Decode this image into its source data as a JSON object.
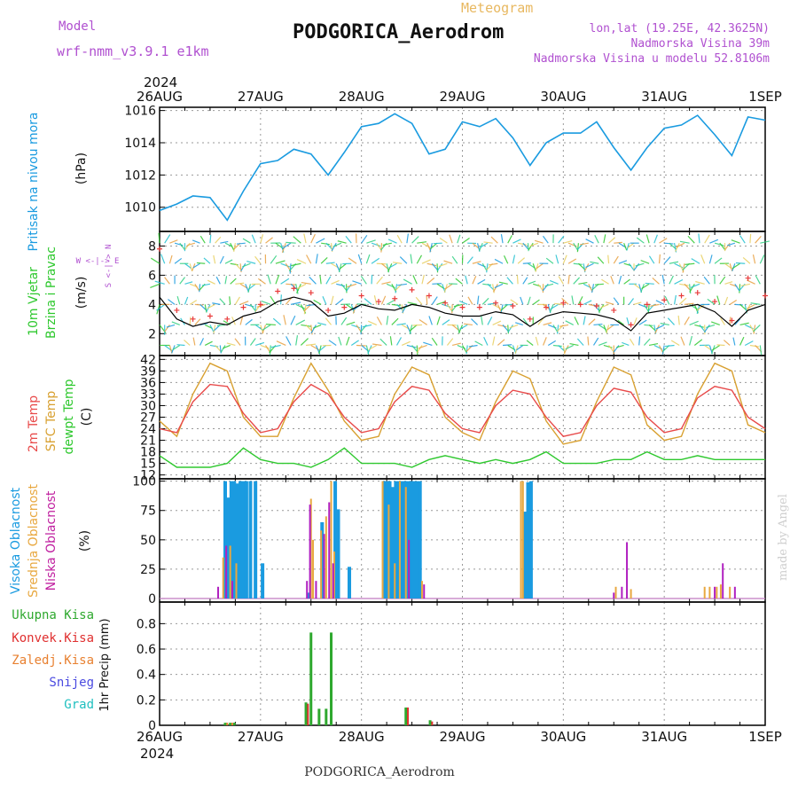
{
  "header": {
    "model_label": "Model",
    "model_name": "wrf-nmm_v3.9.1 e1km",
    "product": "Meteogram",
    "station": "PODGORICA_Aerodrom",
    "lonlat": "lon,lat (19.25E, 42.3625N)",
    "elevation": "Nadmorska Visina 39m",
    "model_elevation": "Nadmorska Visina u modelu 52.8106m"
  },
  "footer": {
    "station": "PODGORICA_Aerodrom",
    "credit": "made by Angel"
  },
  "time_axis": {
    "year": "2024",
    "ticks": [
      "26AUG",
      "27AUG",
      "28AUG",
      "29AUG",
      "30AUG",
      "31AUG",
      "1SEP"
    ]
  },
  "colors": {
    "pressure": "#1a9be0",
    "wind_mean": "#000000",
    "wind_gust": "#e83a3a",
    "temp2m": "#e84a4a",
    "sfc_temp": "#d8a030",
    "dewpt": "#2ec82e",
    "high_cloud": "#1a9be0",
    "mid_cloud": "#e8a840",
    "low_cloud": "#b020c0",
    "precip_total": "#2ea82e",
    "precip_conv": "#e03030",
    "precip_frozen": "#e88030",
    "snow": "#4a4ae0",
    "grad": "#20c0c0",
    "grid": "#999999",
    "title_purple": "#b050d0"
  },
  "chart_data": [
    {
      "type": "line",
      "title": "Pritisak na nivou mora",
      "ylabel": "(hPa)",
      "ylim": [
        1008.5,
        1016.2
      ],
      "yticks": [
        1010,
        1012,
        1014,
        1016
      ],
      "x": [
        0,
        0.17,
        0.33,
        0.5,
        0.67,
        0.83,
        1.0,
        1.17,
        1.33,
        1.5,
        1.67,
        1.83,
        2.0,
        2.17,
        2.33,
        2.5,
        2.67,
        2.83,
        3.0,
        3.17,
        3.33,
        3.5,
        3.67,
        3.83,
        4.0,
        4.17,
        4.33,
        4.5,
        4.67,
        4.83,
        5.0,
        5.17,
        5.33,
        5.5,
        5.67,
        5.83,
        6.0
      ],
      "series": [
        {
          "values": [
            1009.8,
            1010.2,
            1010.7,
            1010.6,
            1009.2,
            1011.0,
            1012.7,
            1012.9,
            1013.6,
            1013.3,
            1012.0,
            1013.4,
            1015.0,
            1015.2,
            1015.8,
            1015.2,
            1013.3,
            1013.6,
            1015.3,
            1015.0,
            1015.5,
            1014.3,
            1012.6,
            1014.0,
            1014.6,
            1014.6,
            1015.3,
            1013.7,
            1012.3,
            1013.7,
            1014.9,
            1015.1,
            1015.7,
            1014.5,
            1013.2,
            1015.6,
            1015.4
          ]
        }
      ]
    },
    {
      "type": "line",
      "title": "10m Vjetar Brzina i Pravac",
      "ylabel": "(m/s)",
      "ylim": [
        0.5,
        9.0
      ],
      "yticks": [
        2,
        4,
        6,
        8
      ],
      "x": [
        0,
        0.17,
        0.33,
        0.5,
        0.67,
        0.83,
        1.0,
        1.17,
        1.33,
        1.5,
        1.67,
        1.83,
        2.0,
        2.17,
        2.33,
        2.5,
        2.67,
        2.83,
        3.0,
        3.17,
        3.33,
        3.5,
        3.67,
        3.83,
        4.0,
        4.17,
        4.33,
        4.5,
        4.67,
        4.83,
        5.0,
        5.17,
        5.33,
        5.5,
        5.67,
        5.83,
        6.0
      ],
      "series": [
        {
          "values": [
            4.5,
            3.0,
            2.5,
            2.8,
            2.6,
            3.2,
            3.5,
            4.2,
            4.5,
            4.2,
            3.2,
            3.4,
            4.0,
            3.7,
            3.6,
            4.0,
            3.8,
            3.4,
            3.2,
            3.2,
            3.5,
            3.3,
            2.5,
            3.2,
            3.5,
            3.4,
            3.3,
            3.0,
            2.2,
            3.4,
            3.6,
            3.8,
            4.0,
            3.5,
            2.5,
            3.6,
            4.0
          ]
        },
        {
          "values": [
            7.8,
            3.6,
            3.0,
            3.2,
            3.0,
            3.8,
            4.0,
            4.9,
            5.1,
            4.8,
            3.6,
            3.8,
            4.6,
            4.2,
            4.4,
            5.0,
            4.6,
            4.1,
            3.8,
            3.8,
            4.1,
            3.9,
            3.0,
            3.8,
            4.1,
            4.0,
            3.9,
            3.6,
            2.6,
            4.0,
            4.3,
            4.6,
            4.8,
            4.2,
            2.9,
            5.8,
            4.6
          ]
        }
      ],
      "direction_legend": [
        "N",
        "S",
        "E",
        "W"
      ]
    },
    {
      "type": "line",
      "title": "2m Temp / SFC Temp / dewpt Temp",
      "ylabel": "(C)",
      "ylim": [
        11,
        43
      ],
      "yticks": [
        12,
        15,
        18,
        21,
        24,
        27,
        30,
        33,
        36,
        39,
        42
      ],
      "x": [
        0,
        0.17,
        0.33,
        0.5,
        0.67,
        0.83,
        1.0,
        1.17,
        1.33,
        1.5,
        1.67,
        1.83,
        2.0,
        2.17,
        2.33,
        2.5,
        2.67,
        2.83,
        3.0,
        3.17,
        3.33,
        3.5,
        3.67,
        3.83,
        4.0,
        4.17,
        4.33,
        4.5,
        4.67,
        4.83,
        5.0,
        5.17,
        5.33,
        5.5,
        5.67,
        5.83,
        6.0
      ],
      "series": [
        {
          "name": "2m Temp",
          "values": [
            24,
            23,
            31,
            35.5,
            35,
            28,
            23,
            24,
            31,
            35.5,
            33,
            27,
            23,
            24,
            31,
            35,
            34,
            28,
            24,
            23,
            30,
            34,
            33,
            27,
            22,
            23,
            30,
            34.5,
            33.5,
            27,
            23,
            24,
            32,
            35,
            34,
            27,
            24
          ]
        },
        {
          "name": "SFC Temp",
          "values": [
            26,
            22,
            33,
            41,
            39,
            27,
            22,
            22,
            32,
            41,
            34,
            26,
            21,
            22,
            33,
            40,
            38,
            27,
            23,
            21,
            31,
            39,
            37,
            26,
            20,
            21,
            31,
            40,
            38,
            25,
            21,
            22,
            33,
            41,
            39,
            25,
            23
          ]
        },
        {
          "name": "dewpt Temp",
          "values": [
            17,
            14,
            14,
            14,
            15,
            19,
            16,
            15,
            15,
            14,
            16,
            19,
            15,
            15,
            15,
            14,
            16,
            17,
            16,
            15,
            16,
            15,
            16,
            18,
            15,
            15,
            15,
            16,
            16,
            18,
            16,
            16,
            17,
            16,
            16,
            16,
            16
          ]
        }
      ]
    },
    {
      "type": "bar",
      "title": "Visoka Oblacnost / Srednja Oblacnost / Niska Oblacnost",
      "ylabel": "(%)",
      "ylim": [
        -3,
        102
      ],
      "yticks": [
        0,
        25,
        50,
        75,
        100
      ],
      "series": [
        {
          "name": "Visoka Oblacnost",
          "points": [
            [
              0.65,
              100
            ],
            [
              0.68,
              86
            ],
            [
              0.71,
              100
            ],
            [
              0.74,
              100
            ],
            [
              0.77,
              98
            ],
            [
              0.8,
              100
            ],
            [
              0.83,
              100
            ],
            [
              0.86,
              100
            ],
            [
              0.9,
              100
            ],
            [
              0.95,
              100
            ],
            [
              1.02,
              30
            ],
            [
              1.48,
              5
            ],
            [
              1.61,
              65
            ],
            [
              1.74,
              100
            ],
            [
              1.77,
              76
            ],
            [
              1.88,
              27
            ],
            [
              2.22,
              100
            ],
            [
              2.25,
              100
            ],
            [
              2.28,
              100
            ],
            [
              2.31,
              95
            ],
            [
              2.34,
              100
            ],
            [
              2.37,
              100
            ],
            [
              2.4,
              100
            ],
            [
              2.43,
              100
            ],
            [
              2.46,
              100
            ],
            [
              2.49,
              100
            ],
            [
              2.52,
              100
            ],
            [
              2.55,
              100
            ],
            [
              2.58,
              100
            ],
            [
              3.62,
              74
            ],
            [
              3.65,
              99
            ],
            [
              3.68,
              100
            ]
          ]
        },
        {
          "name": "Srednja Oblacnost",
          "points": [
            [
              0.63,
              35
            ],
            [
              0.7,
              45
            ],
            [
              0.76,
              30
            ],
            [
              1.5,
              85
            ],
            [
              1.52,
              50
            ],
            [
              1.6,
              58
            ],
            [
              1.65,
              70
            ],
            [
              1.7,
              100
            ],
            [
              1.73,
              40
            ],
            [
              2.21,
              100
            ],
            [
              2.27,
              80
            ],
            [
              2.33,
              30
            ],
            [
              2.38,
              100
            ],
            [
              2.44,
              95
            ],
            [
              2.6,
              15
            ],
            [
              3.58,
              100
            ],
            [
              3.6,
              100
            ],
            [
              4.52,
              10
            ],
            [
              4.67,
              8
            ],
            [
              5.4,
              10
            ],
            [
              5.45,
              10
            ],
            [
              5.52,
              10
            ],
            [
              5.56,
              12
            ],
            [
              5.65,
              10
            ]
          ]
        },
        {
          "name": "Niska Oblacnost",
          "points": [
            [
              0.58,
              10
            ],
            [
              0.66,
              45
            ],
            [
              0.72,
              15
            ],
            [
              1.46,
              15
            ],
            [
              1.49,
              80
            ],
            [
              1.55,
              15
            ],
            [
              1.63,
              55
            ],
            [
              1.68,
              82
            ],
            [
              1.72,
              30
            ],
            [
              2.47,
              50
            ],
            [
              2.62,
              12
            ],
            [
              4.5,
              5
            ],
            [
              4.58,
              10
            ],
            [
              4.63,
              48
            ],
            [
              5.5,
              10
            ],
            [
              5.58,
              30
            ],
            [
              5.7,
              10
            ]
          ]
        }
      ]
    },
    {
      "type": "bar",
      "title": "Ukupna Kisa / Konvek.Kisa / Zaledj.Kisa / Snijeg / Grad",
      "ylabel": "1hr Precip (mm)",
      "ylim": [
        0,
        0.97
      ],
      "yticks": [
        0,
        0.2,
        0.4,
        0.6,
        0.8
      ],
      "series": [
        {
          "name": "Ukupna Kisa",
          "points": [
            [
              0.65,
              0.02
            ],
            [
              0.7,
              0.02
            ],
            [
              0.74,
              0.02
            ],
            [
              1.45,
              0.18
            ],
            [
              1.5,
              0.73
            ],
            [
              1.58,
              0.13
            ],
            [
              1.65,
              0.13
            ],
            [
              1.7,
              0.73
            ],
            [
              2.44,
              0.14
            ],
            [
              2.68,
              0.04
            ]
          ]
        },
        {
          "name": "Konvek.Kisa",
          "points": [
            [
              1.47,
              0.17
            ],
            [
              2.46,
              0.14
            ],
            [
              2.7,
              0.03
            ]
          ]
        },
        {
          "name": "Zaledj.Kisa",
          "points": [
            [
              0.67,
              0.02
            ],
            [
              0.72,
              0.02
            ]
          ]
        }
      ]
    }
  ],
  "panel_labels": {
    "pressure": [
      "Pritisak na nivou mora",
      "(hPa)"
    ],
    "wind": [
      "10m Vjetar",
      "Brzina i Pravac",
      "(m/s)"
    ],
    "temp": [
      "2m Temp",
      "SFC Temp",
      "dewpt Temp",
      "(C)"
    ],
    "cloud": [
      "Visoka Oblacnost",
      "Srednja Oblacnost",
      "Niska Oblacnost",
      "(%)"
    ],
    "precip_legend": [
      "Ukupna Kisa",
      "Konvek.Kisa",
      "Zaledj.Kisa",
      "Snijeg",
      "Grad"
    ],
    "precip_axis": [
      "1hr Precip",
      "(mm)"
    ]
  }
}
